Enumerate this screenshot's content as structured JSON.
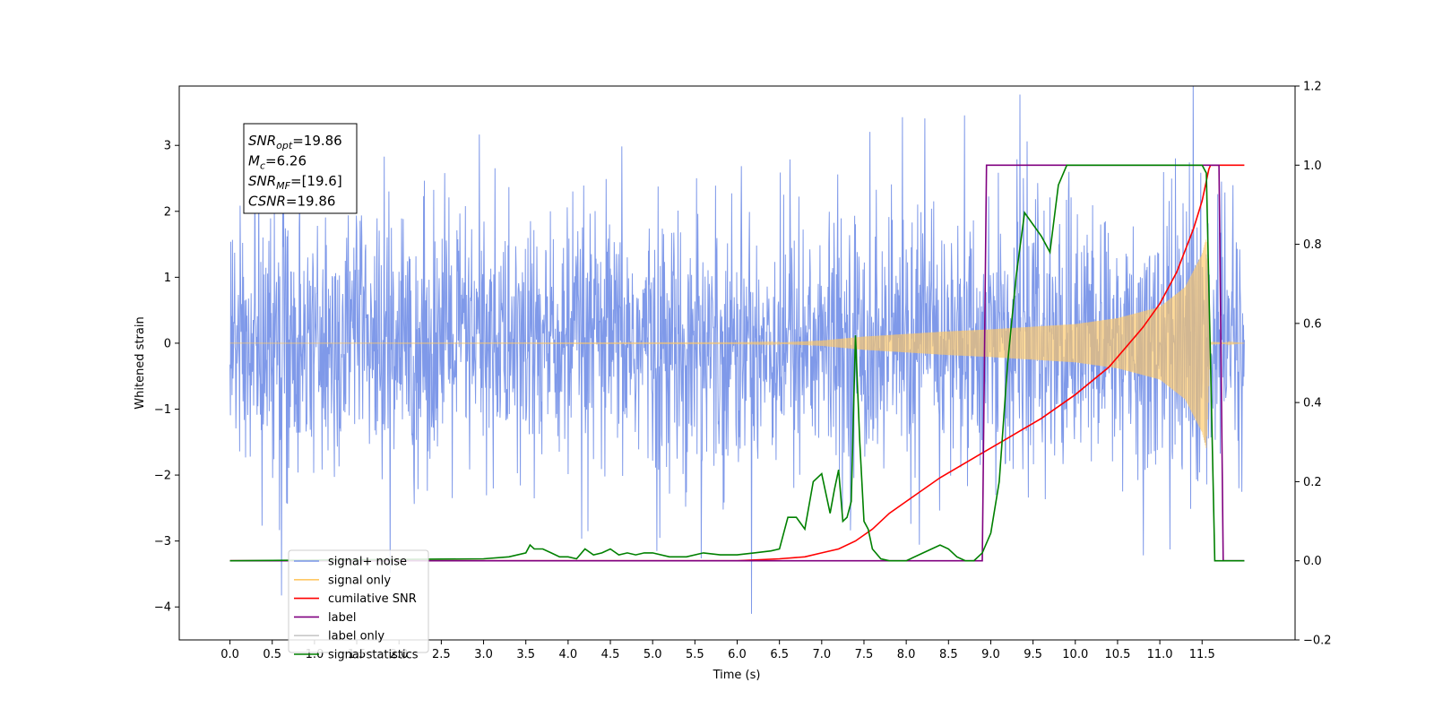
{
  "chart_data": {
    "type": "line",
    "title": "",
    "xlabel": "Time (s)",
    "ylabel_left": "Whitened strain",
    "ylabel_right": "",
    "xlim": [
      -0.6,
      12.6
    ],
    "ylim_left": [
      -4.5,
      3.9
    ],
    "ylim_right": [
      -0.2,
      1.2
    ],
    "x_ticks": [
      "0.0",
      "0.5",
      "1.0",
      "1.5",
      "2.0",
      "2.5",
      "3.0",
      "3.5",
      "4.0",
      "4.5",
      "5.0",
      "5.5",
      "6.0",
      "6.5",
      "7.0",
      "7.5",
      "8.0",
      "8.5",
      "9.0",
      "9.5",
      "10.0",
      "10.5",
      "11.0",
      "11.5"
    ],
    "y_left_ticks": [
      "3",
      "2",
      "1",
      "0",
      "−1",
      "−2",
      "−3",
      "−4"
    ],
    "y_right_ticks": [
      "1.2",
      "1.0",
      "0.8",
      "0.6",
      "0.4",
      "0.2",
      "0.0",
      "−0.2"
    ],
    "grid": false,
    "info_box": {
      "lines": [
        {
          "sym": "SNR",
          "sub": "opt",
          "val": "=19.86"
        },
        {
          "sym": "M",
          "sub": "c",
          "val": "=6.26"
        },
        {
          "sym": "SNR",
          "sub": "MF",
          "val": "=[19.6]"
        },
        {
          "sym": "CSNR",
          "sub": "",
          "val": "=19.86"
        }
      ]
    },
    "legend": {
      "position": "lower left",
      "entries": [
        {
          "name": "signal+ noise",
          "color": "#7894e8"
        },
        {
          "name": "signal only",
          "color": "#ffc864"
        },
        {
          "name": "cumilative SNR",
          "color": "#ff0000"
        },
        {
          "name": "label",
          "color": "#800080"
        },
        {
          "name": "label only",
          "color": "#c8c8c8"
        },
        {
          "name": "signal statistics",
          "color": "#008000"
        }
      ]
    },
    "series": [
      {
        "name": "signal+ noise",
        "axis": "left",
        "color": "#7894e8",
        "x_range": [
          0.0,
          12.0
        ],
        "upper_envelope_approx": 1.5,
        "lower_envelope_approx": -1.5,
        "peak_max": 3.55,
        "peak_min": -4.1
      },
      {
        "name": "signal only",
        "axis": "left",
        "color": "#ffc864",
        "x_range": [
          0.0,
          12.0
        ],
        "envelope": [
          [
            0.0,
            0.0
          ],
          [
            6.0,
            0.005
          ],
          [
            6.5,
            0.01
          ],
          [
            7.0,
            0.04
          ],
          [
            7.5,
            0.1
          ],
          [
            8.0,
            0.14
          ],
          [
            8.5,
            0.18
          ],
          [
            9.0,
            0.21
          ],
          [
            9.5,
            0.25
          ],
          [
            10.0,
            0.29
          ],
          [
            10.5,
            0.38
          ],
          [
            11.0,
            0.55
          ],
          [
            11.3,
            0.85
          ],
          [
            11.5,
            1.35
          ],
          [
            11.55,
            1.6
          ],
          [
            11.6,
            0.02
          ],
          [
            12.0,
            0.0
          ]
        ]
      },
      {
        "name": "cumilative SNR",
        "axis": "right",
        "color": "#ff0000",
        "x": [
          0.0,
          6.0,
          6.5,
          6.8,
          7.0,
          7.2,
          7.4,
          7.6,
          7.8,
          8.0,
          8.4,
          8.8,
          9.2,
          9.6,
          10.0,
          10.4,
          10.8,
          11.0,
          11.2,
          11.4,
          11.5,
          11.58,
          11.6,
          12.0
        ],
        "y": [
          0.0,
          0.0,
          0.005,
          0.01,
          0.02,
          0.03,
          0.05,
          0.08,
          0.12,
          0.15,
          0.21,
          0.26,
          0.31,
          0.36,
          0.42,
          0.49,
          0.59,
          0.65,
          0.73,
          0.84,
          0.91,
          0.99,
          1.0,
          1.0
        ]
      },
      {
        "name": "label",
        "axis": "right",
        "color": "#800080",
        "x": [
          0.0,
          8.9,
          8.95,
          11.7,
          11.75,
          12.0
        ],
        "y": [
          0.0,
          0.0,
          1.0,
          1.0,
          0.0,
          0.0
        ]
      },
      {
        "name": "signal statistics",
        "axis": "right",
        "color": "#008000",
        "x": [
          0.0,
          3.0,
          3.3,
          3.5,
          3.55,
          3.6,
          3.7,
          3.8,
          3.9,
          4.0,
          4.1,
          4.2,
          4.3,
          4.4,
          4.5,
          4.6,
          4.7,
          4.8,
          4.9,
          5.0,
          5.2,
          5.4,
          5.6,
          5.8,
          6.0,
          6.2,
          6.4,
          6.5,
          6.6,
          6.7,
          6.8,
          6.9,
          7.0,
          7.1,
          7.15,
          7.2,
          7.25,
          7.3,
          7.35,
          7.4,
          7.45,
          7.5,
          7.55,
          7.6,
          7.7,
          7.8,
          7.9,
          8.0,
          8.2,
          8.4,
          8.5,
          8.6,
          8.7,
          8.8,
          8.9,
          9.0,
          9.1,
          9.2,
          9.3,
          9.4,
          9.5,
          9.6,
          9.7,
          9.8,
          9.9,
          10.0,
          10.5,
          11.0,
          11.5,
          11.55,
          11.6,
          11.65,
          11.7,
          12.0
        ],
        "y": [
          0.0,
          0.005,
          0.01,
          0.02,
          0.04,
          0.03,
          0.03,
          0.02,
          0.01,
          0.01,
          0.005,
          0.03,
          0.015,
          0.02,
          0.03,
          0.015,
          0.02,
          0.015,
          0.02,
          0.02,
          0.01,
          0.01,
          0.02,
          0.015,
          0.015,
          0.02,
          0.025,
          0.03,
          0.11,
          0.11,
          0.08,
          0.2,
          0.22,
          0.12,
          0.18,
          0.23,
          0.1,
          0.11,
          0.15,
          0.57,
          0.3,
          0.1,
          0.08,
          0.03,
          0.005,
          0.0,
          0.0,
          0.0,
          0.02,
          0.04,
          0.03,
          0.01,
          0.0,
          0.0,
          0.02,
          0.07,
          0.2,
          0.5,
          0.72,
          0.88,
          0.85,
          0.82,
          0.78,
          0.95,
          1.0,
          1.0,
          1.0,
          1.0,
          1.0,
          0.98,
          0.5,
          0.0,
          0.0,
          0.0
        ]
      }
    ]
  }
}
